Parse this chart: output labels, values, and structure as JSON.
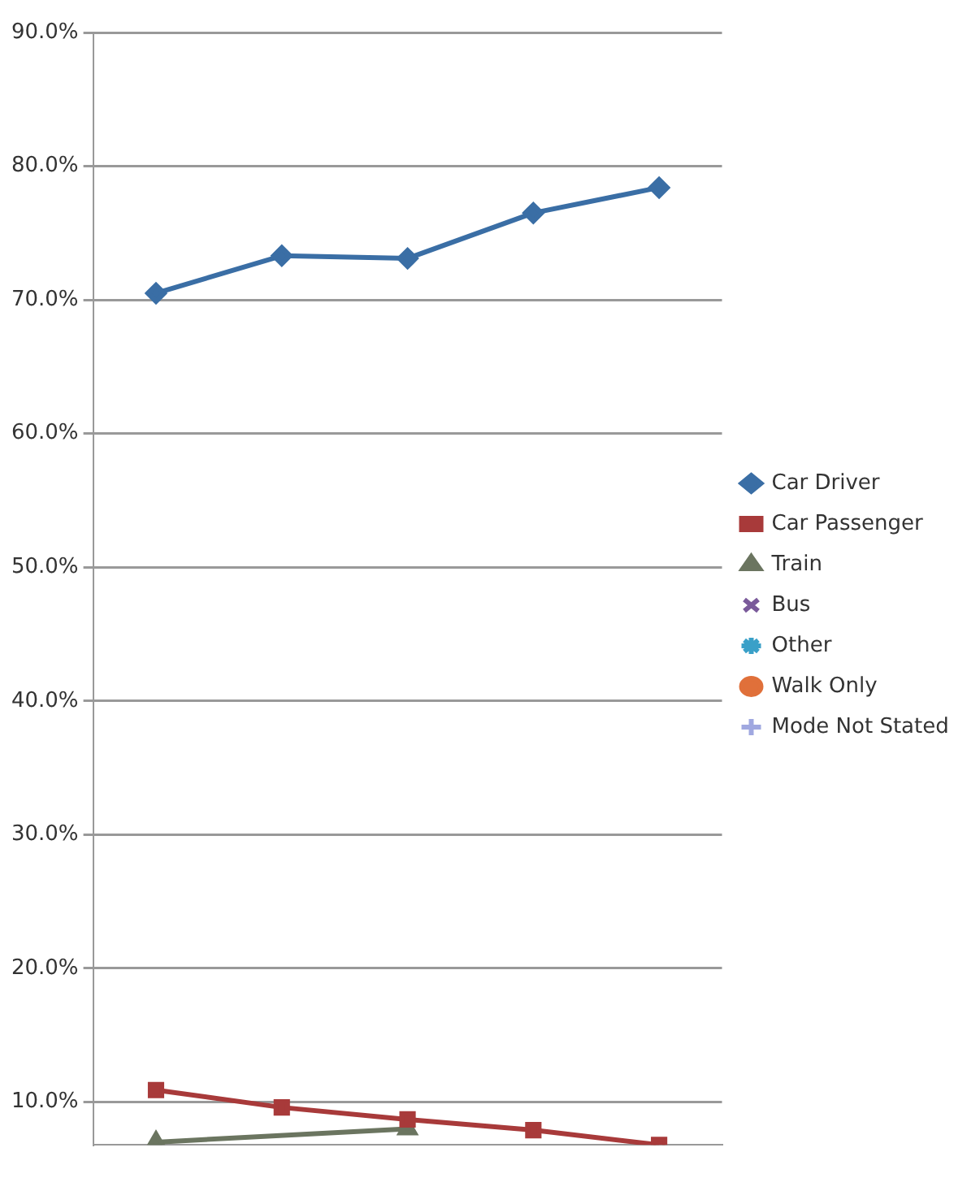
{
  "chart_data": {
    "type": "line",
    "categories": [
      null,
      null,
      null,
      null,
      null
    ],
    "ylim": [
      6.8,
      90
    ],
    "yticks": [
      {
        "value": 10,
        "label": "10.0%"
      },
      {
        "value": 20,
        "label": "20.0%"
      },
      {
        "value": 30,
        "label": "30.0%"
      },
      {
        "value": 40,
        "label": "40.0%"
      },
      {
        "value": 50,
        "label": "50.0%"
      },
      {
        "value": 60,
        "label": "60.0%"
      },
      {
        "value": 70,
        "label": "70.0%"
      },
      {
        "value": 80,
        "label": "80.0%"
      },
      {
        "value": 90,
        "label": "90.0%"
      }
    ],
    "grid": "y",
    "legend": "right",
    "series": [
      {
        "name": "Car Driver",
        "color": "#3a6ea5",
        "marker": "diamond",
        "values": [
          70.5,
          73.3,
          73.1,
          76.5,
          78.4
        ]
      },
      {
        "name": "Car Passenger",
        "color": "#a83a3a",
        "marker": "square",
        "values": [
          10.9,
          9.6,
          8.7,
          7.9,
          6.8
        ]
      },
      {
        "name": "Train",
        "color": "#6b7560",
        "marker": "triangle",
        "values": [
          7.0,
          null,
          8.0,
          null,
          null
        ]
      },
      {
        "name": "Bus",
        "color": "#7a5a9a",
        "marker": "cross",
        "values": [
          null,
          null,
          null,
          null,
          null
        ]
      },
      {
        "name": "Other",
        "color": "#3aa0c8",
        "marker": "star",
        "values": [
          null,
          null,
          null,
          null,
          null
        ]
      },
      {
        "name": "Walk Only",
        "color": "#e0703a",
        "marker": "circle",
        "values": [
          null,
          null,
          null,
          null,
          null
        ]
      },
      {
        "name": "Mode Not Stated",
        "color": "#a0a8e0",
        "marker": "plus",
        "values": [
          null,
          null,
          null,
          null,
          null
        ]
      }
    ]
  }
}
